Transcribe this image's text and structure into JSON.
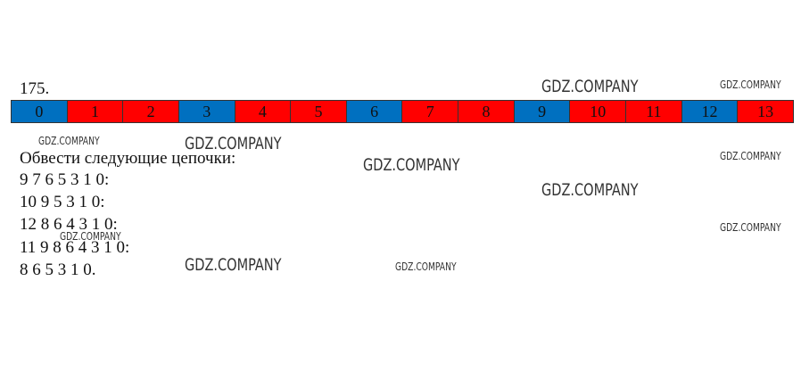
{
  "exercise": {
    "number": "175.",
    "cells": [
      {
        "label": "0",
        "color": "#0070c0"
      },
      {
        "label": "1",
        "color": "#ff0000"
      },
      {
        "label": "2",
        "color": "#ff0000"
      },
      {
        "label": "3",
        "color": "#0070c0"
      },
      {
        "label": "4",
        "color": "#ff0000"
      },
      {
        "label": "5",
        "color": "#ff0000"
      },
      {
        "label": "6",
        "color": "#0070c0"
      },
      {
        "label": "7",
        "color": "#ff0000"
      },
      {
        "label": "8",
        "color": "#ff0000"
      },
      {
        "label": "9",
        "color": "#0070c0"
      },
      {
        "label": "10",
        "color": "#ff0000"
      },
      {
        "label": "11",
        "color": "#ff0000"
      },
      {
        "label": "12",
        "color": "#0070c0"
      },
      {
        "label": "13",
        "color": "#ff0000"
      }
    ],
    "instruction": "Обвести следующие цепочки:",
    "chains": [
      "9 7 6 5 3 1 0:",
      "10 9 5 3 1 0:",
      "12 8 6 4 3 1 0:",
      "11 9 8 6 4 3 1 0:",
      "8 6 5 3 1 0."
    ]
  },
  "watermarks": [
    "GDZ.COMPANY",
    "GDZ.COMPANY",
    "GDZ.COMPANY",
    "GDZ.COMPANY",
    "GDZ.COMPANY",
    "GDZ.COMPANY",
    "GDZ.COMPANY",
    "GDZ.COMPANY",
    "GDZ.COMPANY",
    "GDZ.COMPANY",
    "GDZ.COMPANY"
  ]
}
